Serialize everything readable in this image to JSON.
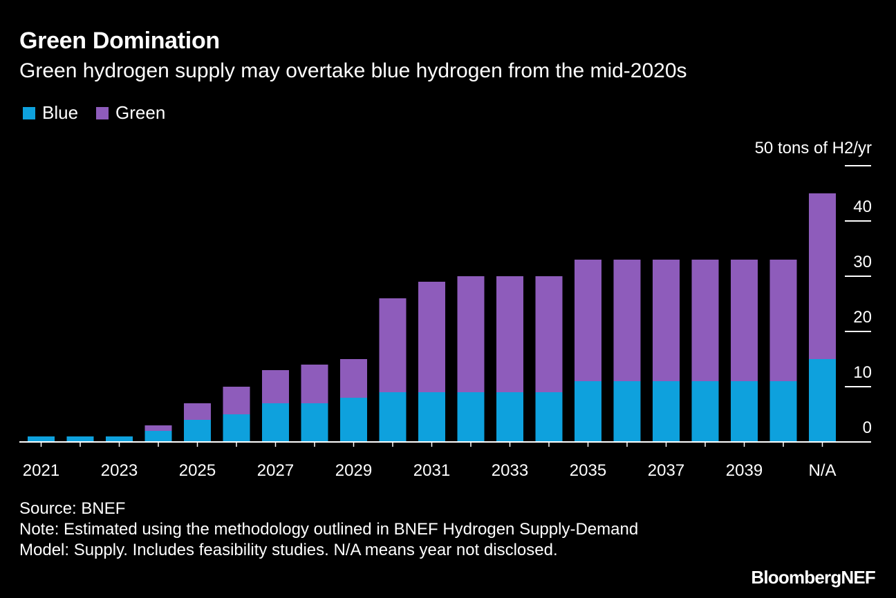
{
  "title": "Green Domination",
  "subtitle": "Green hydrogen supply may overtake blue hydrogen from the mid-2020s",
  "legend": [
    {
      "label": "Blue",
      "color": "#0ea1dd"
    },
    {
      "label": "Green",
      "color": "#8e5cbb"
    }
  ],
  "source": "Source: BNEF",
  "note": "Note: Estimated using the methodology outlined in BNEF Hydrogen Supply-Demand Model: Supply. Includes feasibility studies. N/A means year not disclosed.",
  "logo": "BloombergNEF",
  "chart_data": {
    "type": "bar",
    "stacked": true,
    "categories": [
      "2021",
      "2022",
      "2023",
      "2024",
      "2025",
      "2026",
      "2027",
      "2028",
      "2029",
      "2030",
      "2031",
      "2032",
      "2033",
      "2034",
      "2035",
      "2036",
      "2037",
      "2038",
      "2039",
      "2040",
      "N/A"
    ],
    "x_tick_labels": [
      "2021",
      "2023",
      "2025",
      "2027",
      "2029",
      "2031",
      "2033",
      "2035",
      "2037",
      "2039",
      "N/A"
    ],
    "series": [
      {
        "name": "Blue",
        "color": "#0ea1dd",
        "values": [
          1,
          1,
          1,
          2,
          4,
          5,
          7,
          7,
          8,
          9,
          9,
          9,
          9,
          9,
          11,
          11,
          11,
          11,
          11,
          11,
          15
        ]
      },
      {
        "name": "Green",
        "color": "#8e5cbb",
        "values": [
          0,
          0,
          0,
          1,
          3,
          5,
          6,
          7,
          7,
          17,
          20,
          21,
          21,
          21,
          22,
          22,
          22,
          22,
          22,
          22,
          30
        ]
      }
    ],
    "y_axis_title": "50 tons of H2/yr",
    "y_ticks": [
      0,
      10,
      20,
      30,
      40,
      50
    ],
    "ylim": [
      0,
      50
    ],
    "y_axis_position": "right",
    "grid": false
  }
}
